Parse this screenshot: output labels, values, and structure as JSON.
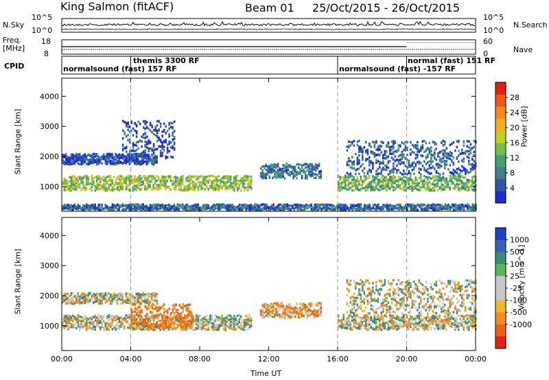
{
  "header": {
    "station": "King Salmon (fitACF)",
    "beam": "Beam 01",
    "dates": "25/Oct/2015 - 26/Oct/2015"
  },
  "top_panels": {
    "nsky_label": "N.Sky",
    "nsearch_label": "N.Search",
    "freq_label_line1": "Freq.",
    "freq_label_line2": "[MHz]",
    "nave_label": "Nave",
    "cpid_label": "CPID",
    "nsky_ticks": [
      "10^5",
      "10^0"
    ],
    "nsearch_ticks": [
      "10^5",
      "10^0"
    ],
    "freq_ticks": [
      "18",
      "8"
    ],
    "nave_ticks": [
      "60",
      "0"
    ],
    "cpid_segments": [
      {
        "label": "normalsound (fast) 157 RF",
        "start_hour": 0
      },
      {
        "label": "themis 3300 RF",
        "start_hour": 4
      },
      {
        "label": "normalsound (fast) -157 RF",
        "start_hour": 16
      },
      {
        "label": "normal (fast) 151 RF",
        "start_hour": 20
      }
    ]
  },
  "chart_data": [
    {
      "type": "heatmap",
      "title": "",
      "xlabel": "Time UT",
      "ylabel": "Slant Range [km]",
      "xlim": [
        0,
        24
      ],
      "ylim": [
        180,
        4600
      ],
      "x_ticks": [
        "00:00",
        "04:00",
        "08:00",
        "12:00",
        "16:00",
        "20:00",
        "00:00"
      ],
      "y_ticks": [
        1000,
        2000,
        3000,
        4000
      ],
      "colorbar_label": "Power [dB]",
      "colorbar_ticks": [
        4,
        8,
        12,
        16,
        20,
        24,
        28
      ],
      "colorbar_colors": [
        "#1a2adc",
        "#2f57a8",
        "#3e7f8a",
        "#4aa06c",
        "#74be4a",
        "#c7cc22",
        "#f0b21c",
        "#f08a1a",
        "#ee5a14",
        "#e81e10"
      ],
      "dashed_hours": [
        4,
        16,
        20
      ],
      "echo_regions": [
        {
          "t_start": 0.0,
          "t_end": 11.0,
          "range_center": 1150,
          "range_width": 350,
          "mean_power_db": 16
        },
        {
          "t_start": 0.0,
          "t_end": 5.5,
          "range_center": 1950,
          "range_width": 250,
          "mean_power_db": 6
        },
        {
          "t_start": 3.5,
          "t_end": 6.5,
          "range_center": 2600,
          "range_width": 900,
          "mean_power_db": 5
        },
        {
          "t_start": 11.5,
          "t_end": 15.0,
          "range_center": 1550,
          "range_width": 350,
          "mean_power_db": 9
        },
        {
          "t_start": 16.0,
          "t_end": 24.0,
          "range_center": 1150,
          "range_width": 350,
          "mean_power_db": 14
        },
        {
          "t_start": 16.5,
          "t_end": 24.0,
          "range_center": 2000,
          "range_width": 800,
          "mean_power_db": 7
        },
        {
          "t_start": 0.0,
          "t_end": 24.0,
          "range_center": 320,
          "range_width": 180,
          "mean_power_db": 8
        }
      ]
    },
    {
      "type": "heatmap",
      "title": "",
      "xlabel": "Time UT",
      "ylabel": "Slant Range [km]",
      "xlim": [
        0,
        24
      ],
      "ylim": [
        180,
        4600
      ],
      "x_ticks": [
        "00:00",
        "04:00",
        "08:00",
        "12:00",
        "16:00",
        "20:00",
        "00:00"
      ],
      "y_ticks": [
        1000,
        2000,
        3000,
        4000
      ],
      "colorbar_label": "Velocity [m s^-1]",
      "colorbar_ticks": [
        "1000",
        "500",
        "100",
        "25",
        "-25",
        "-100",
        "-500",
        "-1000"
      ],
      "colorbar_colors": [
        "#1f3fc8",
        "#3565b0",
        "#3f8a80",
        "#5ab450",
        "#c8c8c8",
        "#c8c8c8",
        "#f0b830",
        "#f08c20",
        "#ee6018",
        "#e81e10"
      ],
      "dashed_hours": [
        4,
        16,
        20
      ],
      "echo_regions": [
        {
          "t_start": 0.0,
          "t_end": 11.0,
          "range_center": 1150,
          "range_width": 350,
          "mean_velocity": 0
        },
        {
          "t_start": 0.0,
          "t_end": 5.5,
          "range_center": 1950,
          "range_width": 250,
          "mean_velocity": 0
        },
        {
          "t_start": 4.0,
          "t_end": 7.5,
          "range_center": 1350,
          "range_width": 600,
          "mean_velocity": -300
        },
        {
          "t_start": 11.5,
          "t_end": 15.0,
          "range_center": 1550,
          "range_width": 350,
          "mean_velocity": -150
        },
        {
          "t_start": 16.0,
          "t_end": 24.0,
          "range_center": 1150,
          "range_width": 350,
          "mean_velocity": 0
        },
        {
          "t_start": 16.5,
          "t_end": 24.0,
          "range_center": 2000,
          "range_width": 800,
          "mean_velocity": 0
        }
      ]
    }
  ]
}
